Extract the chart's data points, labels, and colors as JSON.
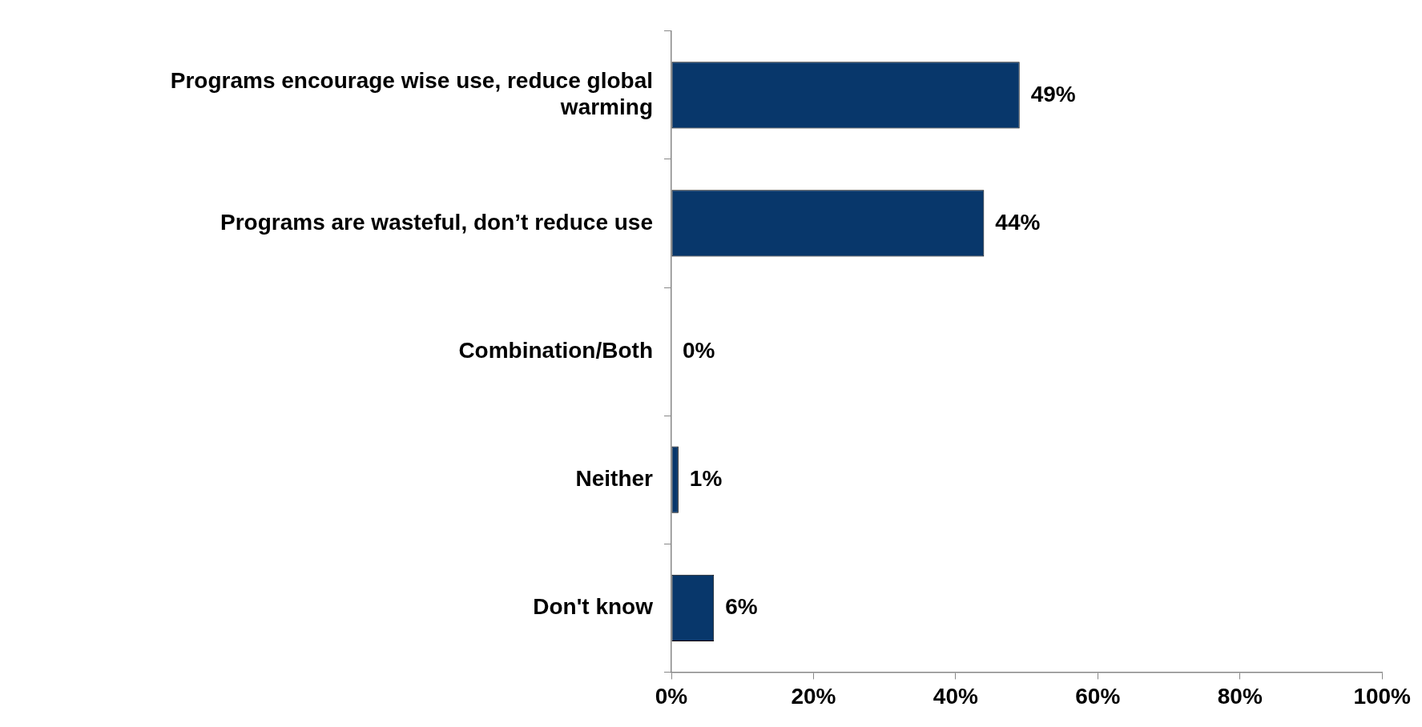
{
  "chart_data": {
    "type": "bar",
    "orientation": "horizontal",
    "categories": [
      "Programs encourage wise use, reduce global warming",
      "Programs are wasteful, don’t reduce use",
      "Combination/Both",
      "Neither",
      "Don't know"
    ],
    "values": [
      49,
      44,
      0,
      1,
      6
    ],
    "value_labels": [
      "49%",
      "44%",
      "0%",
      "1%",
      "6%"
    ],
    "color": "#08376b",
    "xlim": [
      0,
      100
    ],
    "xticks": [
      {
        "value": 0,
        "label": "0%"
      },
      {
        "value": 20,
        "label": "20%"
      },
      {
        "value": 40,
        "label": "40%"
      },
      {
        "value": 60,
        "label": "60%"
      },
      {
        "value": 80,
        "label": "80%"
      },
      {
        "value": 100,
        "label": "100%"
      }
    ],
    "grid": false,
    "legend": false
  }
}
